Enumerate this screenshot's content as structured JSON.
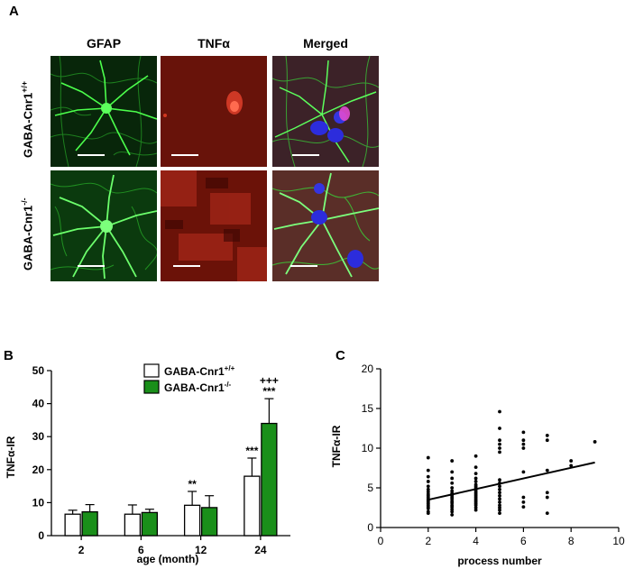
{
  "panel_a": {
    "letter": "A",
    "columns": [
      "GFAP",
      "TNFα",
      "Merged"
    ],
    "rows": [
      {
        "base": "GABA-Cnr1",
        "sup": "+/+"
      },
      {
        "base": "GABA-Cnr1",
        "sup": "-/-"
      }
    ]
  },
  "panel_b": {
    "letter": "B"
  },
  "panel_c": {
    "letter": "C"
  },
  "colors": {
    "wildtype_fill": "#ffffff",
    "knockout_fill": "#1a8f1a",
    "gfap_green": "#35e035",
    "tnf_red": "#c0261c",
    "dapi_blue": "#2c2cdc"
  },
  "chart_data": [
    {
      "type": "bar",
      "ylabel": "TNFα-IR",
      "xlabel": "age (month)",
      "ylim": [
        0,
        50
      ],
      "yticks": [
        0,
        10,
        20,
        30,
        40,
        50
      ],
      "categories": [
        "2",
        "6",
        "12",
        "24"
      ],
      "series": [
        {
          "name_base": "GABA-Cnr1",
          "name_sup": "+/+",
          "values": [
            6.5,
            6.5,
            9.2,
            18.0
          ],
          "errors": [
            1.2,
            2.8,
            4.2,
            5.5
          ]
        },
        {
          "name_base": "GABA-Cnr1",
          "name_sup": "-/-",
          "values": [
            7.2,
            7.0,
            8.5,
            34.0
          ],
          "errors": [
            2.2,
            1.0,
            3.6,
            7.5
          ]
        }
      ],
      "annotations": [
        {
          "category": "12",
          "series": 0,
          "text": "**"
        },
        {
          "category": "24",
          "series": 0,
          "text": "***"
        },
        {
          "category": "24",
          "series": 1,
          "text": "***"
        },
        {
          "category": "24",
          "series": 1,
          "text": "+++"
        }
      ],
      "legend": "top-right",
      "grid": false
    },
    {
      "type": "scatter",
      "ylabel": "TNFα-IR",
      "xlabel": "process number",
      "xlim": [
        0,
        10
      ],
      "ylim": [
        0,
        20
      ],
      "xticks": [
        0,
        2,
        4,
        6,
        8,
        10
      ],
      "yticks": [
        0,
        5,
        10,
        15,
        20
      ],
      "points": [
        [
          2,
          8.8
        ],
        [
          2,
          7.2
        ],
        [
          2,
          6.4
        ],
        [
          2,
          5.8
        ],
        [
          2,
          5.2
        ],
        [
          2,
          4.8
        ],
        [
          2,
          4.5
        ],
        [
          2,
          4.2
        ],
        [
          2,
          4.0
        ],
        [
          2,
          3.8
        ],
        [
          2,
          3.6
        ],
        [
          2,
          3.4
        ],
        [
          2,
          3.2
        ],
        [
          2,
          3.0
        ],
        [
          2,
          2.8
        ],
        [
          2,
          2.6
        ],
        [
          2,
          2.4
        ],
        [
          2,
          2.0
        ],
        [
          2,
          1.8
        ],
        [
          3,
          8.4
        ],
        [
          3,
          7.0
        ],
        [
          3,
          6.2
        ],
        [
          3,
          5.6
        ],
        [
          3,
          5.0
        ],
        [
          3,
          4.6
        ],
        [
          3,
          4.3
        ],
        [
          3,
          4.0
        ],
        [
          3,
          3.8
        ],
        [
          3,
          3.6
        ],
        [
          3,
          3.3
        ],
        [
          3,
          3.1
        ],
        [
          3,
          2.8
        ],
        [
          3,
          2.6
        ],
        [
          3,
          2.3
        ],
        [
          3,
          2.0
        ],
        [
          3,
          1.6
        ],
        [
          4,
          9.0
        ],
        [
          4,
          7.6
        ],
        [
          4,
          6.8
        ],
        [
          4,
          6.2
        ],
        [
          4,
          5.8
        ],
        [
          4,
          5.4
        ],
        [
          4,
          5.2
        ],
        [
          4,
          5.0
        ],
        [
          4,
          4.8
        ],
        [
          4,
          4.6
        ],
        [
          4,
          4.4
        ],
        [
          4,
          4.2
        ],
        [
          4,
          4.0
        ],
        [
          4,
          3.8
        ],
        [
          4,
          3.6
        ],
        [
          4,
          3.4
        ],
        [
          4,
          3.2
        ],
        [
          4,
          3.0
        ],
        [
          4,
          2.8
        ],
        [
          4,
          2.5
        ],
        [
          4,
          2.2
        ],
        [
          5,
          14.6
        ],
        [
          5,
          12.5
        ],
        [
          5,
          11.0
        ],
        [
          5,
          10.5
        ],
        [
          5,
          10.0
        ],
        [
          5,
          9.5
        ],
        [
          5,
          6.0
        ],
        [
          5,
          5.6
        ],
        [
          5,
          5.2
        ],
        [
          5,
          4.8
        ],
        [
          5,
          4.4
        ],
        [
          5,
          4.0
        ],
        [
          5,
          3.6
        ],
        [
          5,
          3.2
        ],
        [
          5,
          2.8
        ],
        [
          5,
          2.5
        ],
        [
          5,
          2.2
        ],
        [
          5,
          1.8
        ],
        [
          6,
          12.0
        ],
        [
          6,
          11.0
        ],
        [
          6,
          10.5
        ],
        [
          6,
          10.0
        ],
        [
          6,
          7.0
        ],
        [
          6,
          3.8
        ],
        [
          6,
          3.2
        ],
        [
          6,
          2.6
        ],
        [
          7,
          11.6
        ],
        [
          7,
          11.0
        ],
        [
          7,
          7.2
        ],
        [
          7,
          4.4
        ],
        [
          7,
          3.8
        ],
        [
          7,
          1.8
        ],
        [
          8,
          8.4
        ],
        [
          8,
          7.8
        ],
        [
          9,
          10.8
        ]
      ],
      "fit_line": {
        "x": [
          2,
          9
        ],
        "y": [
          3.5,
          8.2
        ]
      },
      "grid": false
    }
  ]
}
